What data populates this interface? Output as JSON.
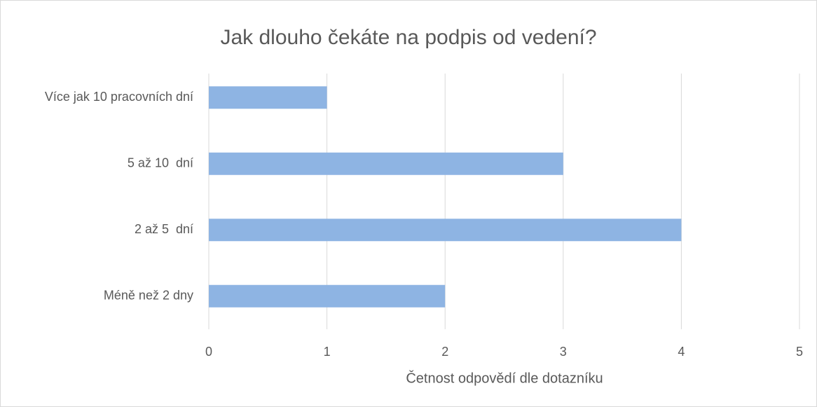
{
  "chart_data": {
    "type": "barh",
    "title": "Jak dlouho čekáte na podpis od vedení?",
    "categories": [
      "Více jak 10 pracovních dní",
      "5 až 10  dní",
      "2 až 5  dní",
      "Méně než 2 dny"
    ],
    "values": [
      1,
      3,
      4,
      2
    ],
    "color": "#8eb4e3",
    "xlabel": "Četnost odpovědí dle dotazníku",
    "xlim": [
      0,
      5
    ],
    "xticks": [
      0,
      1,
      2,
      3,
      4,
      5
    ],
    "grid": true
  }
}
